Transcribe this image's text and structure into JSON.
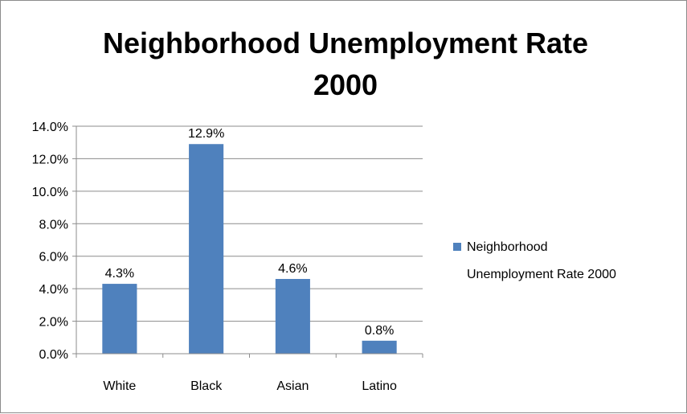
{
  "chart_data": {
    "type": "bar",
    "title_lines": [
      "Neighborhood Unemployment Rate",
      "2000"
    ],
    "categories": [
      "White",
      "Black",
      "Asian",
      "Latino"
    ],
    "series": [
      {
        "name_lines": [
          "Neighborhood",
          "Unemployment Rate 2000"
        ],
        "values": [
          4.3,
          12.9,
          4.6,
          0.8
        ],
        "data_labels": [
          "4.3%",
          "12.9%",
          "4.6%",
          "0.8%"
        ],
        "color": "#4f81bd"
      }
    ],
    "ylim": [
      0,
      14
    ],
    "y_ticks": [
      0,
      2,
      4,
      6,
      8,
      10,
      12,
      14
    ],
    "y_tick_labels": [
      "0.0%",
      "2.0%",
      "4.0%",
      "6.0%",
      "8.0%",
      "10.0%",
      "12.0%",
      "14.0%"
    ],
    "grid": true,
    "gridline_color": "#8c8c8c",
    "legend_position": "right"
  }
}
